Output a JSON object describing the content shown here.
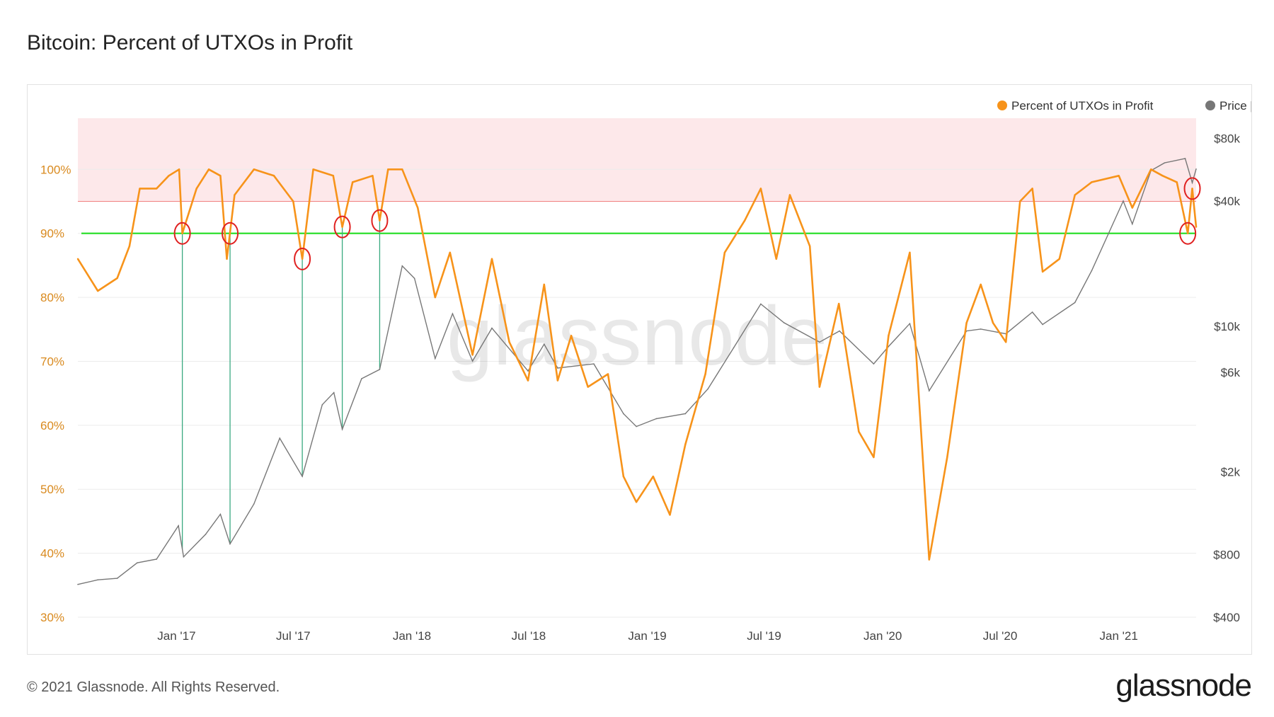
{
  "header": {
    "title": "Bitcoin: Percent of UTXOs in Profit"
  },
  "footer": {
    "copyright": "© 2021 Glassnode. All Rights Reserved.",
    "brand": "glassnode"
  },
  "watermark": "glassnode",
  "colors": {
    "profit": "#f7931a",
    "price": "#777777",
    "band": "#fde8ea",
    "band_line": "#f08080",
    "support": "#22dd22",
    "markers": "#e02020",
    "drops": "#3aaa80"
  },
  "chart_data": {
    "type": "line",
    "x_ticks": [
      "Jan '17",
      "Jul '17",
      "Jan '18",
      "Jul '18",
      "Jan '19",
      "Jul '19",
      "Jan '20",
      "Jul '20",
      "Jan '21"
    ],
    "y_left_ticks": [
      "30%",
      "40%",
      "50%",
      "60%",
      "70%",
      "80%",
      "90%",
      "100%"
    ],
    "y_right_ticks": [
      "$400",
      "$800",
      "$2k",
      "$6k",
      "$10k",
      "$40k",
      "$80k"
    ],
    "y_left_range": [
      30,
      108
    ],
    "y_right_scale": "log",
    "y_right_range": [
      400,
      100000
    ],
    "x_range": [
      "2016-08-01",
      "2021-05-01"
    ],
    "legend": [
      "Percent of UTXOs in Profit",
      "Price [USD]"
    ],
    "legend_position": "top-right",
    "grid": true,
    "threshold_band": {
      "from": 95,
      "to": 108
    },
    "support_line": 90,
    "series": [
      {
        "name": "Percent of UTXOs in Profit",
        "points": [
          [
            "2016-08-01",
            86
          ],
          [
            "2016-09-01",
            81
          ],
          [
            "2016-10-01",
            83
          ],
          [
            "2016-10-20",
            88
          ],
          [
            "2016-11-05",
            97
          ],
          [
            "2016-12-01",
            97
          ],
          [
            "2016-12-20",
            99
          ],
          [
            "2017-01-05",
            100
          ],
          [
            "2017-01-10",
            90
          ],
          [
            "2017-02-01",
            97
          ],
          [
            "2017-02-20",
            100
          ],
          [
            "2017-03-10",
            99
          ],
          [
            "2017-03-20",
            86
          ],
          [
            "2017-04-01",
            96
          ],
          [
            "2017-05-01",
            100
          ],
          [
            "2017-06-01",
            99
          ],
          [
            "2017-07-01",
            95
          ],
          [
            "2017-07-15",
            86
          ],
          [
            "2017-08-01",
            100
          ],
          [
            "2017-09-01",
            99
          ],
          [
            "2017-09-15",
            91
          ],
          [
            "2017-10-01",
            98
          ],
          [
            "2017-11-01",
            99
          ],
          [
            "2017-11-12",
            92
          ],
          [
            "2017-11-25",
            100
          ],
          [
            "2017-12-17",
            100
          ],
          [
            "2018-01-10",
            94
          ],
          [
            "2018-02-06",
            80
          ],
          [
            "2018-03-01",
            87
          ],
          [
            "2018-04-05",
            71
          ],
          [
            "2018-05-05",
            86
          ],
          [
            "2018-06-01",
            73
          ],
          [
            "2018-06-30",
            67
          ],
          [
            "2018-07-25",
            82
          ],
          [
            "2018-08-15",
            67
          ],
          [
            "2018-09-05",
            74
          ],
          [
            "2018-10-01",
            66
          ],
          [
            "2018-11-01",
            68
          ],
          [
            "2018-11-25",
            52
          ],
          [
            "2018-12-15",
            48
          ],
          [
            "2019-01-10",
            52
          ],
          [
            "2019-02-05",
            46
          ],
          [
            "2019-03-01",
            57
          ],
          [
            "2019-04-01",
            68
          ],
          [
            "2019-05-01",
            87
          ],
          [
            "2019-06-01",
            92
          ],
          [
            "2019-06-26",
            97
          ],
          [
            "2019-07-20",
            86
          ],
          [
            "2019-08-10",
            96
          ],
          [
            "2019-09-10",
            88
          ],
          [
            "2019-09-25",
            66
          ],
          [
            "2019-10-25",
            79
          ],
          [
            "2019-11-25",
            59
          ],
          [
            "2019-12-18",
            55
          ],
          [
            "2020-01-10",
            74
          ],
          [
            "2020-02-12",
            87
          ],
          [
            "2020-03-13",
            39
          ],
          [
            "2020-04-10",
            55
          ],
          [
            "2020-05-10",
            76
          ],
          [
            "2020-06-01",
            82
          ],
          [
            "2020-06-20",
            76
          ],
          [
            "2020-07-10",
            73
          ],
          [
            "2020-08-01",
            95
          ],
          [
            "2020-08-20",
            97
          ],
          [
            "2020-09-05",
            84
          ],
          [
            "2020-10-01",
            86
          ],
          [
            "2020-10-25",
            96
          ],
          [
            "2020-11-20",
            98
          ],
          [
            "2021-01-01",
            99
          ],
          [
            "2021-01-22",
            94
          ],
          [
            "2021-02-20",
            100
          ],
          [
            "2021-03-10",
            99
          ],
          [
            "2021-04-01",
            98
          ],
          [
            "2021-04-18",
            90
          ],
          [
            "2021-04-25",
            97
          ],
          [
            "2021-05-01",
            91
          ]
        ]
      },
      {
        "name": "Price [USD]",
        "points": [
          [
            "2016-08-01",
            575
          ],
          [
            "2016-09-01",
            605
          ],
          [
            "2016-10-01",
            615
          ],
          [
            "2016-11-01",
            730
          ],
          [
            "2016-12-01",
            760
          ],
          [
            "2017-01-04",
            1100
          ],
          [
            "2017-01-12",
            780
          ],
          [
            "2017-02-15",
            1000
          ],
          [
            "2017-03-10",
            1250
          ],
          [
            "2017-03-25",
            900
          ],
          [
            "2017-05-01",
            1400
          ],
          [
            "2017-06-10",
            2900
          ],
          [
            "2017-07-15",
            1900
          ],
          [
            "2017-08-15",
            4200
          ],
          [
            "2017-09-02",
            4800
          ],
          [
            "2017-09-15",
            3200
          ],
          [
            "2017-10-15",
            5600
          ],
          [
            "2017-11-12",
            6200
          ],
          [
            "2017-12-17",
            19500
          ],
          [
            "2018-01-05",
            17000
          ],
          [
            "2018-02-06",
            7000
          ],
          [
            "2018-03-05",
            11500
          ],
          [
            "2018-04-05",
            6800
          ],
          [
            "2018-05-05",
            9800
          ],
          [
            "2018-06-30",
            6100
          ],
          [
            "2018-07-25",
            8200
          ],
          [
            "2018-08-15",
            6300
          ],
          [
            "2018-10-10",
            6600
          ],
          [
            "2018-11-25",
            3800
          ],
          [
            "2018-12-15",
            3300
          ],
          [
            "2019-01-15",
            3600
          ],
          [
            "2019-03-01",
            3800
          ],
          [
            "2019-04-05",
            5000
          ],
          [
            "2019-05-15",
            7900
          ],
          [
            "2019-06-26",
            12800
          ],
          [
            "2019-08-01",
            10400
          ],
          [
            "2019-09-25",
            8400
          ],
          [
            "2019-10-26",
            9500
          ],
          [
            "2019-12-18",
            6600
          ],
          [
            "2020-01-10",
            8000
          ],
          [
            "2020-02-12",
            10300
          ],
          [
            "2020-03-13",
            4900
          ],
          [
            "2020-05-10",
            9500
          ],
          [
            "2020-06-01",
            9700
          ],
          [
            "2020-07-10",
            9200
          ],
          [
            "2020-08-20",
            11700
          ],
          [
            "2020-09-05",
            10200
          ],
          [
            "2020-10-25",
            13000
          ],
          [
            "2020-11-20",
            18500
          ],
          [
            "2021-01-08",
            40000
          ],
          [
            "2021-01-22",
            31000
          ],
          [
            "2021-02-20",
            56000
          ],
          [
            "2021-03-13",
            61000
          ],
          [
            "2021-04-14",
            64000
          ],
          [
            "2021-04-25",
            49000
          ],
          [
            "2021-05-01",
            57000
          ]
        ]
      }
    ],
    "annotations": {
      "circled_dips": [
        "2017-01-10",
        "2017-03-25",
        "2017-07-15",
        "2017-09-15",
        "2017-11-12",
        "2021-04-18",
        "2021-04-25"
      ],
      "drop_lines": [
        "2017-01-10",
        "2017-03-25",
        "2017-07-15",
        "2017-09-15",
        "2017-11-12"
      ]
    }
  }
}
